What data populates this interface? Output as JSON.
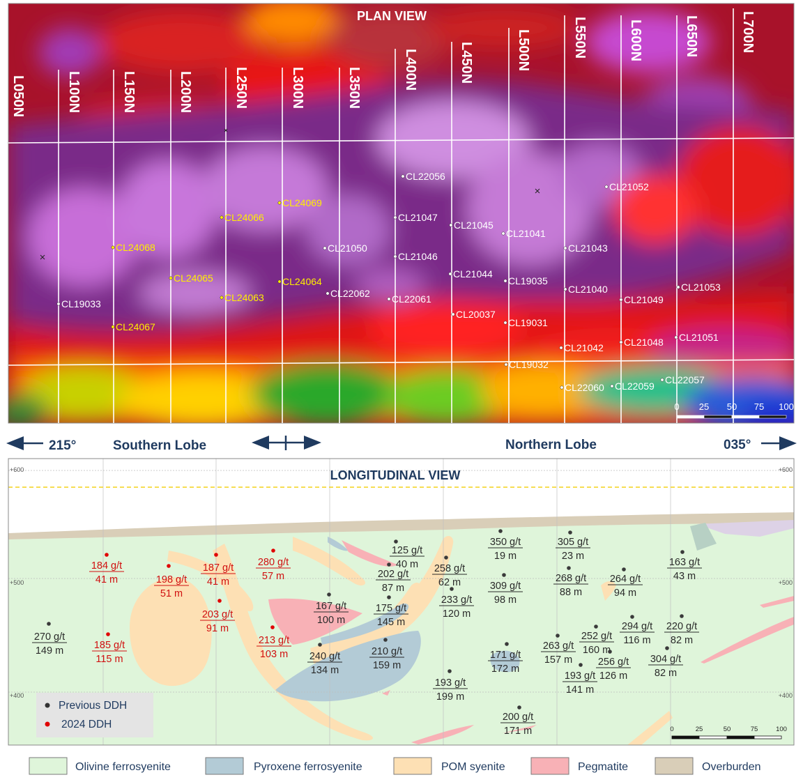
{
  "plan_view": {
    "title": "PLAN VIEW",
    "lines": [
      "L050N",
      "L100N",
      "L150N",
      "L200N",
      "L250N",
      "L300N",
      "L350N",
      "L400N",
      "L450N",
      "L500N",
      "L550N",
      "L600N",
      "L650N",
      "L700N"
    ],
    "scale_labels": [
      "0",
      "25",
      "50",
      "75",
      "100"
    ],
    "holes": [
      {
        "id": "CL22056",
        "year": "previous"
      },
      {
        "id": "CL21052",
        "year": "previous"
      },
      {
        "id": "CL24069",
        "year": "2024"
      },
      {
        "id": "CL24066",
        "year": "2024"
      },
      {
        "id": "CL21047",
        "year": "previous"
      },
      {
        "id": "CL21045",
        "year": "previous"
      },
      {
        "id": "CL21041",
        "year": "previous"
      },
      {
        "id": "CL24068",
        "year": "2024"
      },
      {
        "id": "CL21050",
        "year": "previous"
      },
      {
        "id": "CL21043",
        "year": "previous"
      },
      {
        "id": "CL21046",
        "year": "previous"
      },
      {
        "id": "CL21044",
        "year": "previous"
      },
      {
        "id": "CL24065",
        "year": "2024"
      },
      {
        "id": "CL19035",
        "year": "previous"
      },
      {
        "id": "CL24064",
        "year": "2024"
      },
      {
        "id": "CL21053",
        "year": "previous"
      },
      {
        "id": "CL21040",
        "year": "previous"
      },
      {
        "id": "CL22062",
        "year": "previous"
      },
      {
        "id": "CL24063",
        "year": "2024"
      },
      {
        "id": "CL22061",
        "year": "previous"
      },
      {
        "id": "CL21049",
        "year": "previous"
      },
      {
        "id": "CL19033",
        "year": "previous"
      },
      {
        "id": "CL20037",
        "year": "previous"
      },
      {
        "id": "CL19031",
        "year": "previous"
      },
      {
        "id": "CL24067",
        "year": "2024"
      },
      {
        "id": "CL21051",
        "year": "previous"
      },
      {
        "id": "CL21048",
        "year": "previous"
      },
      {
        "id": "CL21042",
        "year": "previous"
      },
      {
        "id": "CL19032",
        "year": "previous"
      },
      {
        "id": "CL22057",
        "year": "previous"
      },
      {
        "id": "CL22060",
        "year": "previous"
      },
      {
        "id": "CL22059",
        "year": "previous"
      }
    ]
  },
  "orientation": {
    "left_azimuth": "215°",
    "left_label": "Southern Lobe",
    "right_label": "Northern Lobe",
    "right_azimuth": "035°"
  },
  "longitudinal_view": {
    "title": "LONGITUDINAL VIEW",
    "elevation_labels": [
      "+600",
      "+500",
      "+400"
    ],
    "scale_labels": [
      "0",
      "25",
      "50",
      "75",
      "100"
    ],
    "intercepts": [
      {
        "grade": "184 g/t",
        "length": "41 m",
        "year": "2024"
      },
      {
        "grade": "198 g/t",
        "length": "51 m",
        "year": "2024"
      },
      {
        "grade": "187 g/t",
        "length": "41 m",
        "year": "2024"
      },
      {
        "grade": "280 g/t",
        "length": "57 m",
        "year": "2024"
      },
      {
        "grade": "203 g/t",
        "length": "91 m",
        "year": "2024"
      },
      {
        "grade": "213 g/t",
        "length": "103 m",
        "year": "2024"
      },
      {
        "grade": "185 g/t",
        "length": "115 m",
        "year": "2024"
      },
      {
        "grade": "270 g/t",
        "length": "149 m",
        "year": "previous"
      },
      {
        "grade": "167 g/t",
        "length": "100 m",
        "year": "previous"
      },
      {
        "grade": "240 g/t",
        "length": "134 m",
        "year": "previous"
      },
      {
        "grade": "125 g/t",
        "length": "40 m",
        "year": "previous"
      },
      {
        "grade": "202 g/t",
        "length": "87 m",
        "year": "previous"
      },
      {
        "grade": "175 g/t",
        "length": "145 m",
        "year": "previous"
      },
      {
        "grade": "210 g/t",
        "length": "159 m",
        "year": "previous"
      },
      {
        "grade": "258 g/t",
        "length": "62 m",
        "year": "previous"
      },
      {
        "grade": "233 g/t",
        "length": "120 m",
        "year": "previous"
      },
      {
        "grade": "193 g/t",
        "length": "199 m",
        "year": "previous"
      },
      {
        "grade": "350 g/t",
        "length": "19 m",
        "year": "previous"
      },
      {
        "grade": "309 g/t",
        "length": "98 m",
        "year": "previous"
      },
      {
        "grade": "171 g/t",
        "length": "172 m",
        "year": "previous"
      },
      {
        "grade": "200 g/t",
        "length": "171 m",
        "year": "previous"
      },
      {
        "grade": "305 g/t",
        "length": "23 m",
        "year": "previous"
      },
      {
        "grade": "268 g/t",
        "length": "88 m",
        "year": "previous"
      },
      {
        "grade": "263 g/t",
        "length": "157 m",
        "year": "previous"
      },
      {
        "grade": "252 g/t",
        "length": "160 m",
        "year": "previous"
      },
      {
        "grade": "193 g/t",
        "length": "141 m",
        "year": "previous"
      },
      {
        "grade": "256 g/t",
        "length": "126 m",
        "year": "previous"
      },
      {
        "grade": "264 g/t",
        "length": "94 m",
        "year": "previous"
      },
      {
        "grade": "294 g/t",
        "length": "116 m",
        "year": "previous"
      },
      {
        "grade": "304 g/t",
        "length": "82 m",
        "year": "previous"
      },
      {
        "grade": "163 g/t",
        "length": "43 m",
        "year": "previous"
      },
      {
        "grade": "220 g/t",
        "length": "82 m",
        "year": "previous"
      }
    ],
    "inset_legend": [
      {
        "label": "Previous DDH",
        "color": "#333333"
      },
      {
        "label": "2024 DDH",
        "color": "#e00000"
      }
    ]
  },
  "legend": [
    {
      "label": "Olivine ferrosyenite",
      "color": "#dff5da"
    },
    {
      "label": "Pyroxene ferrosyenite",
      "color": "#b3cbd6"
    },
    {
      "label": "POM syenite",
      "color": "#fde0b4"
    },
    {
      "label": "Pegmatite",
      "color": "#f8b1b6"
    },
    {
      "label": "Overburden",
      "color": "#d9ceb8"
    }
  ],
  "colors": {
    "hole_2024_plan": "#ffee00",
    "hole_prev_plan": "#ffffff",
    "hole_2024_long": "#d01010",
    "hole_prev_long": "#2a2a2a",
    "navy": "#1f3a5f"
  }
}
